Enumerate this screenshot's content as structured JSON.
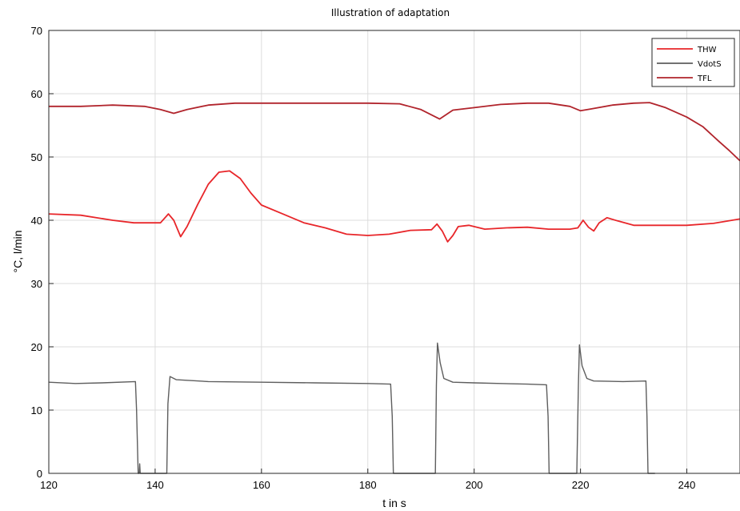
{
  "chart_data": {
    "type": "line",
    "title": "Illustration of adaptation",
    "xlabel": "t in s",
    "ylabel": "°C, l/min",
    "xlim": [
      120,
      250
    ],
    "ylim": [
      0,
      70
    ],
    "xticks": [
      120,
      140,
      160,
      180,
      200,
      220,
      240
    ],
    "yticks": [
      0,
      10,
      20,
      30,
      40,
      50,
      60,
      70
    ],
    "grid": true,
    "legend_position": "top-right",
    "series": [
      {
        "name": "THW",
        "color": "#e8262a",
        "points": [
          [
            120,
            41
          ],
          [
            126,
            40.8
          ],
          [
            132,
            40
          ],
          [
            136,
            39.6
          ],
          [
            141,
            39.6
          ],
          [
            142.5,
            41
          ],
          [
            143.5,
            40
          ],
          [
            144.8,
            37.4
          ],
          [
            146,
            39
          ],
          [
            148,
            42.5
          ],
          [
            150,
            45.7
          ],
          [
            152,
            47.6
          ],
          [
            154,
            47.8
          ],
          [
            156,
            46.6
          ],
          [
            158,
            44.3
          ],
          [
            160,
            42.4
          ],
          [
            164,
            41
          ],
          [
            168,
            39.6
          ],
          [
            172,
            38.8
          ],
          [
            176,
            37.8
          ],
          [
            180,
            37.6
          ],
          [
            184,
            37.8
          ],
          [
            188,
            38.4
          ],
          [
            192,
            38.5
          ],
          [
            193,
            39.4
          ],
          [
            194,
            38.3
          ],
          [
            195,
            36.6
          ],
          [
            196,
            37.6
          ],
          [
            197,
            39
          ],
          [
            199,
            39.2
          ],
          [
            202,
            38.6
          ],
          [
            206,
            38.8
          ],
          [
            210,
            38.9
          ],
          [
            214,
            38.6
          ],
          [
            218,
            38.6
          ],
          [
            219.5,
            38.8
          ],
          [
            220.5,
            40
          ],
          [
            221.5,
            38.9
          ],
          [
            222.5,
            38.3
          ],
          [
            223.5,
            39.6
          ],
          [
            225,
            40.4
          ],
          [
            227,
            39.9
          ],
          [
            230,
            39.2
          ],
          [
            235,
            39.2
          ],
          [
            240,
            39.2
          ],
          [
            245,
            39.5
          ],
          [
            250,
            40.2
          ]
        ]
      },
      {
        "name": "VdotS",
        "color": "#5e5e5e",
        "points": [
          [
            120,
            14.4
          ],
          [
            125,
            14.2
          ],
          [
            130,
            14.3
          ],
          [
            136.3,
            14.5
          ],
          [
            136.5,
            10
          ],
          [
            136.8,
            0
          ],
          [
            137,
            0
          ],
          [
            137.1,
            1.5
          ],
          [
            137.2,
            0
          ],
          [
            142.2,
            0
          ],
          [
            142.4,
            11
          ],
          [
            142.8,
            15.3
          ],
          [
            144,
            14.8
          ],
          [
            150,
            14.5
          ],
          [
            160,
            14.4
          ],
          [
            170,
            14.3
          ],
          [
            180,
            14.2
          ],
          [
            184.3,
            14.1
          ],
          [
            184.6,
            9
          ],
          [
            184.8,
            0
          ],
          [
            192.7,
            0
          ],
          [
            192.9,
            14
          ],
          [
            193.1,
            20.6
          ],
          [
            193.6,
            17.5
          ],
          [
            194.3,
            15
          ],
          [
            196,
            14.4
          ],
          [
            200,
            14.3
          ],
          [
            205,
            14.2
          ],
          [
            210,
            14.1
          ],
          [
            213.6,
            14
          ],
          [
            213.9,
            9
          ],
          [
            214.1,
            0
          ],
          [
            219.3,
            0
          ],
          [
            219.6,
            14
          ],
          [
            219.8,
            20.3
          ],
          [
            220.3,
            17
          ],
          [
            221.2,
            15
          ],
          [
            222.5,
            14.6
          ],
          [
            228,
            14.5
          ],
          [
            232.3,
            14.6
          ],
          [
            232.5,
            9
          ],
          [
            232.7,
            0
          ],
          [
            234,
            0
          ]
        ]
      },
      {
        "name": "TFL",
        "color": "#b1242c",
        "points": [
          [
            120,
            58
          ],
          [
            126,
            58
          ],
          [
            132,
            58.2
          ],
          [
            138,
            58
          ],
          [
            141,
            57.5
          ],
          [
            143.5,
            56.9
          ],
          [
            146,
            57.5
          ],
          [
            150,
            58.2
          ],
          [
            155,
            58.5
          ],
          [
            160,
            58.5
          ],
          [
            170,
            58.5
          ],
          [
            180,
            58.5
          ],
          [
            186,
            58.4
          ],
          [
            190,
            57.5
          ],
          [
            193.5,
            56
          ],
          [
            196,
            57.4
          ],
          [
            200,
            57.8
          ],
          [
            205,
            58.3
          ],
          [
            210,
            58.5
          ],
          [
            214,
            58.5
          ],
          [
            218,
            58
          ],
          [
            220,
            57.3
          ],
          [
            222,
            57.6
          ],
          [
            226,
            58.2
          ],
          [
            230,
            58.5
          ],
          [
            233,
            58.6
          ],
          [
            236,
            57.8
          ],
          [
            240,
            56.3
          ],
          [
            243,
            54.8
          ],
          [
            246,
            52.5
          ],
          [
            248,
            51
          ],
          [
            250,
            49.4
          ]
        ]
      }
    ]
  }
}
